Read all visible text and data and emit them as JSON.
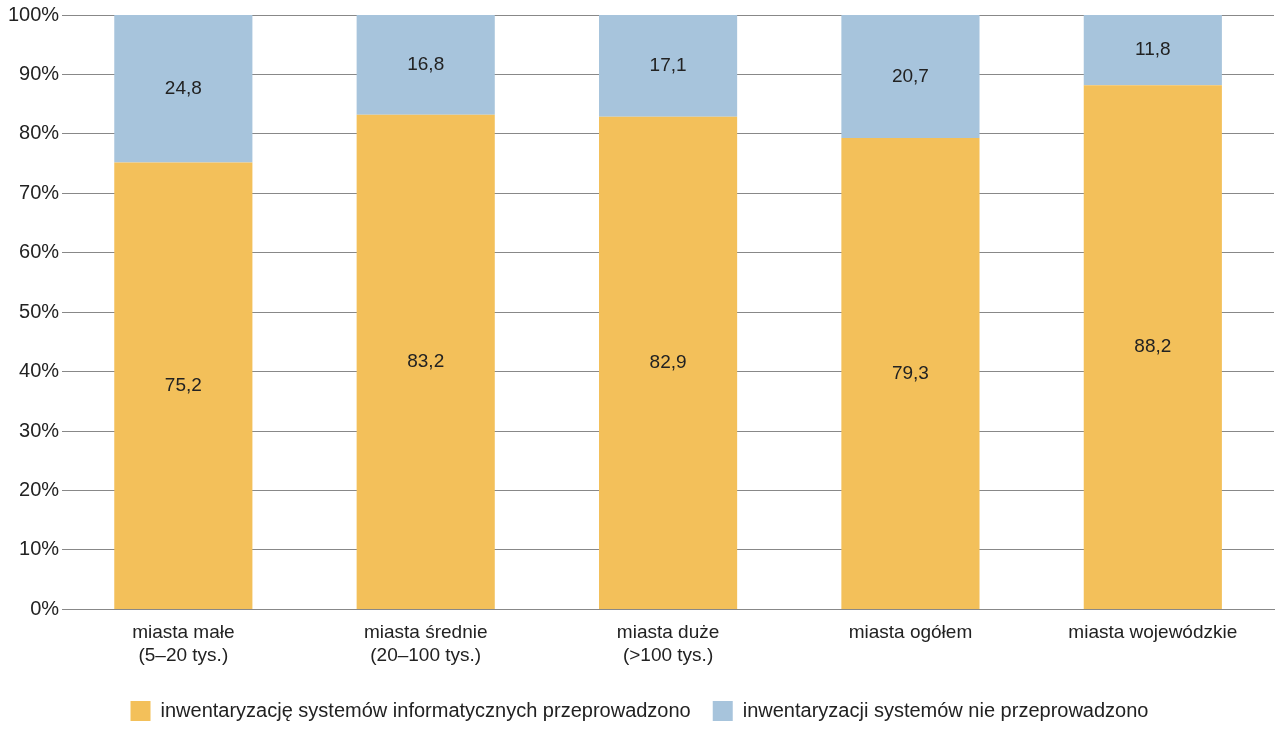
{
  "chart_data": {
    "type": "bar",
    "stacked": true,
    "categories": [
      "miasta małe\n(5–20 tys.)",
      "miasta średnie\n(20–100 tys.)",
      "miasta duże\n(>100 tys.)",
      "miasta ogółem",
      "miasta wojewódzkie"
    ],
    "series": [
      {
        "name": "inwentaryzację systemów informatycznych przeprowadzono",
        "color": "#f3c05a",
        "values": [
          75.2,
          83.2,
          82.9,
          79.3,
          88.2
        ],
        "value_labels": [
          "75,2",
          "83,2",
          "82,9",
          "79,3",
          "88,2"
        ]
      },
      {
        "name": "inwentaryzacji systemów nie przeprowadzono",
        "color": "#a7c4dc",
        "values": [
          24.8,
          16.8,
          17.1,
          20.7,
          11.8
        ],
        "value_labels": [
          "24,8",
          "16,8",
          "17,1",
          "20,7",
          "11,8"
        ]
      }
    ],
    "ylim": [
      0,
      100
    ],
    "yticks": [
      {
        "value": 0,
        "label": "0%"
      },
      {
        "value": 10,
        "label": "10%"
      },
      {
        "value": 20,
        "label": "20%"
      },
      {
        "value": 30,
        "label": "30%"
      },
      {
        "value": 40,
        "label": "40%"
      },
      {
        "value": 50,
        "label": "50%"
      },
      {
        "value": 60,
        "label": "60%"
      },
      {
        "value": 70,
        "label": "70%"
      },
      {
        "value": 80,
        "label": "80%"
      },
      {
        "value": 90,
        "label": "90%"
      },
      {
        "value": 100,
        "label": "100%"
      }
    ],
    "grid": "y",
    "legend": "bottom"
  }
}
